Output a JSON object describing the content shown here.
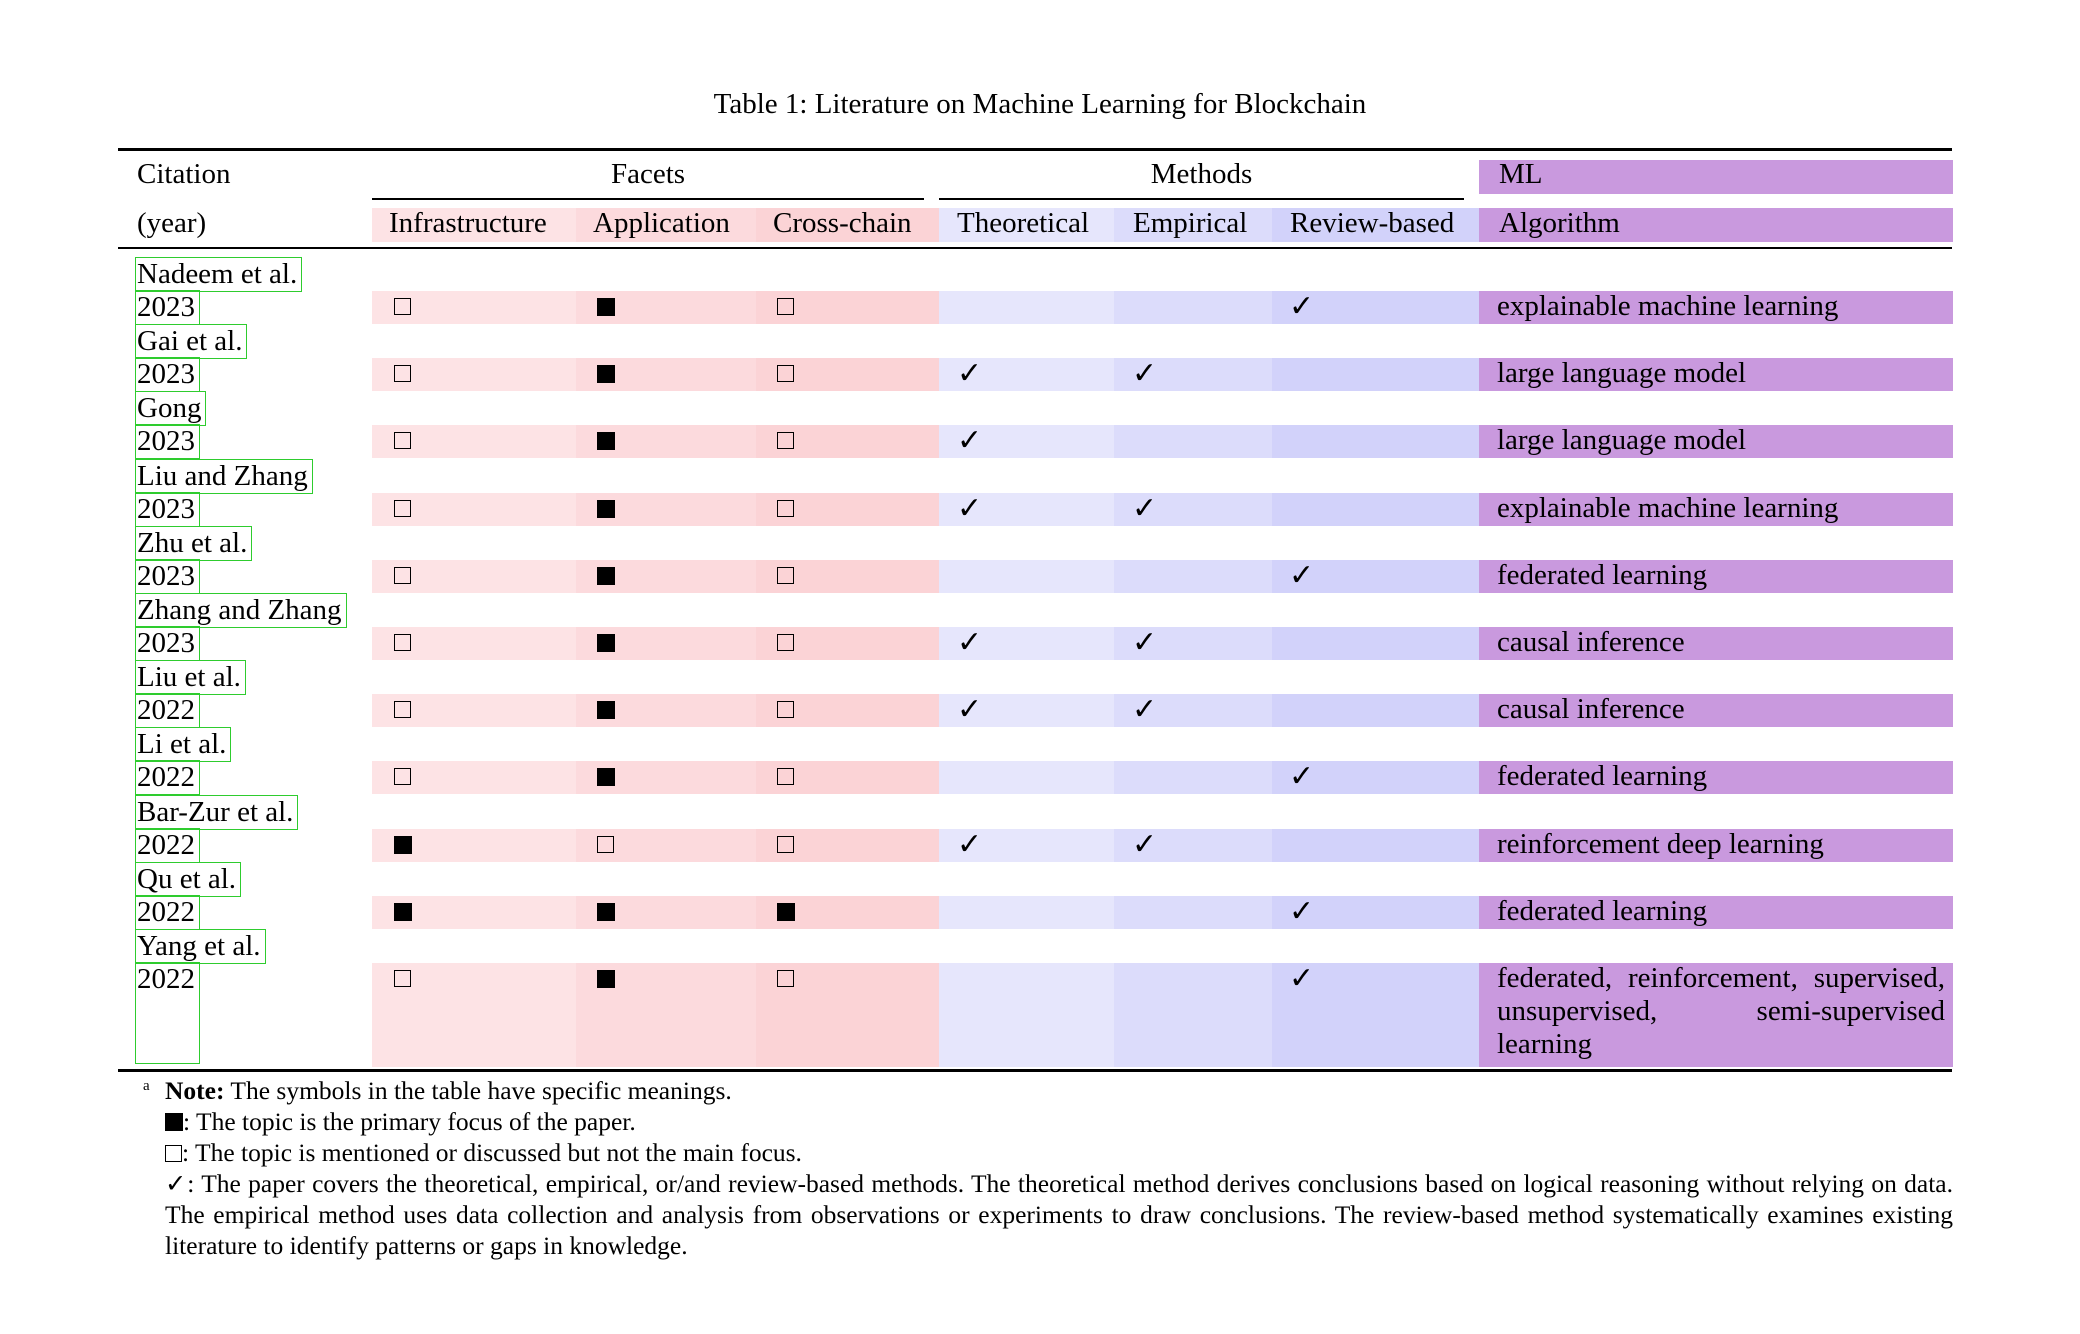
{
  "caption": "Table 1: Literature on Machine Learning for Blockchain",
  "header": {
    "citation": "Citation",
    "year": "(year)",
    "facets": "Facets",
    "methods": "Methods",
    "ml": "ML",
    "columns": [
      "Infrastructure",
      "Application",
      "Cross-chain",
      "Theoretical",
      "Empirical",
      "Review-based",
      "Algorithm"
    ]
  },
  "rows": [
    {
      "citation": "Nadeem et al.",
      "year": "2023",
      "infrastructure": "mentioned",
      "application": "primary",
      "crosschain": "mentioned",
      "theoretical": false,
      "empirical": false,
      "review": true,
      "algorithm": "explainable machine learning"
    },
    {
      "citation": "Gai et al.",
      "year": "2023",
      "infrastructure": "mentioned",
      "application": "primary",
      "crosschain": "mentioned",
      "theoretical": true,
      "empirical": true,
      "review": false,
      "algorithm": "large language model"
    },
    {
      "citation": "Gong",
      "year": "2023",
      "infrastructure": "mentioned",
      "application": "primary",
      "crosschain": "mentioned",
      "theoretical": true,
      "empirical": false,
      "review": false,
      "algorithm": "large language model"
    },
    {
      "citation": "Liu and Zhang",
      "year": "2023",
      "infrastructure": "mentioned",
      "application": "primary",
      "crosschain": "mentioned",
      "theoretical": true,
      "empirical": true,
      "review": false,
      "algorithm": "explainable machine learning"
    },
    {
      "citation": "Zhu et al.",
      "year": "2023",
      "infrastructure": "mentioned",
      "application": "primary",
      "crosschain": "mentioned",
      "theoretical": false,
      "empirical": false,
      "review": true,
      "algorithm": "federated learning"
    },
    {
      "citation": "Zhang and Zhang",
      "year": "2023",
      "infrastructure": "mentioned",
      "application": "primary",
      "crosschain": "mentioned",
      "theoretical": true,
      "empirical": true,
      "review": false,
      "algorithm": "causal inference"
    },
    {
      "citation": "Liu et al.",
      "year": "2022",
      "infrastructure": "mentioned",
      "application": "primary",
      "crosschain": "mentioned",
      "theoretical": true,
      "empirical": true,
      "review": false,
      "algorithm": "causal inference"
    },
    {
      "citation": "Li et al.",
      "year": "2022",
      "infrastructure": "mentioned",
      "application": "primary",
      "crosschain": "mentioned",
      "theoretical": false,
      "empirical": false,
      "review": true,
      "algorithm": "federated learning"
    },
    {
      "citation": "Bar-Zur et al.",
      "year": "2022",
      "infrastructure": "primary",
      "application": "mentioned",
      "crosschain": "mentioned",
      "theoretical": true,
      "empirical": true,
      "review": false,
      "algorithm": "reinforcement deep learning"
    },
    {
      "citation": "Qu et al.",
      "year": "2022",
      "infrastructure": "primary",
      "application": "primary",
      "crosschain": "primary",
      "theoretical": false,
      "empirical": false,
      "review": true,
      "algorithm": "federated learning"
    },
    {
      "citation": "Yang et al.",
      "year": "2022",
      "infrastructure": "mentioned",
      "application": "primary",
      "crosschain": "mentioned",
      "theoretical": false,
      "empirical": false,
      "review": true,
      "algorithm": "federated, reinforcement, supervised, unsupervised, semi-supervised learning"
    }
  ],
  "notes": {
    "marker": "a",
    "title": "Note:",
    "intro": "The symbols in the table have specific meanings.",
    "primary": ": The topic is the primary focus of the paper.",
    "mentioned": ": The topic is mentioned or discussed but not the main focus.",
    "check_symbol": "✓",
    "check": ": The paper covers the theoretical, empirical, or/and review-based methods. The theoretical method derives conclusions based on logical reasoning without relying on data. The empirical method uses data collection and analysis from observations or experiments to draw conclusions. The review-based method systematically examines existing literature to identify patterns or gaps in knowledge."
  }
}
